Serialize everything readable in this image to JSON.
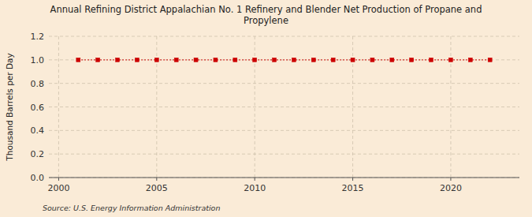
{
  "chart_data": {
    "type": "line",
    "title": "Annual Refining District Appalachian No. 1 Refinery and Blender Net Production of Propane and\nPropylene",
    "y_label": "Thousand Barrels per Day",
    "annotations": [
      "Source: U.S. Energy Information Administration"
    ],
    "x": [
      2001,
      2002,
      2003,
      2004,
      2005,
      2006,
      2007,
      2008,
      2009,
      2010,
      2011,
      2012,
      2013,
      2014,
      2015,
      2016,
      2017,
      2018,
      2019,
      2020,
      2021,
      2022
    ],
    "values": [
      1.0,
      1.0,
      1.0,
      1.0,
      1.0,
      1.0,
      1.0,
      1.0,
      1.0,
      1.0,
      1.0,
      1.0,
      1.0,
      1.0,
      1.0,
      1.0,
      1.0,
      1.0,
      1.0,
      1.0,
      1.0,
      1.0
    ],
    "color": "#cc0000",
    "marker": "square",
    "line_style": "dotted",
    "xlim": [
      1999.5,
      2023.5
    ],
    "ylim": [
      0.0,
      1.2
    ],
    "xticks": [
      2000,
      2005,
      2010,
      2015,
      2020
    ],
    "yticks": [
      {
        "value": 0.0,
        "label": "0.0"
      },
      0.2,
      0.4,
      0.6,
      0.8,
      {
        "value": 1.0,
        "label": "1.0"
      },
      1.2
    ],
    "grid": true
  }
}
